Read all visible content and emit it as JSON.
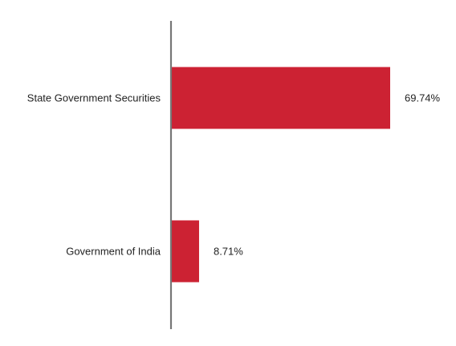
{
  "chart_data": {
    "type": "bar",
    "orientation": "horizontal",
    "categories": [
      "State Government Securities",
      "Government of India"
    ],
    "values": [
      69.74,
      8.71
    ],
    "value_labels": [
      "69.74%",
      "8.71%"
    ],
    "unit": "%",
    "xlim": [
      0,
      100
    ],
    "grid": false,
    "legend": "none",
    "colors": {
      "bar": "#CC2233",
      "axis": "#777777",
      "text": "#222222"
    }
  }
}
